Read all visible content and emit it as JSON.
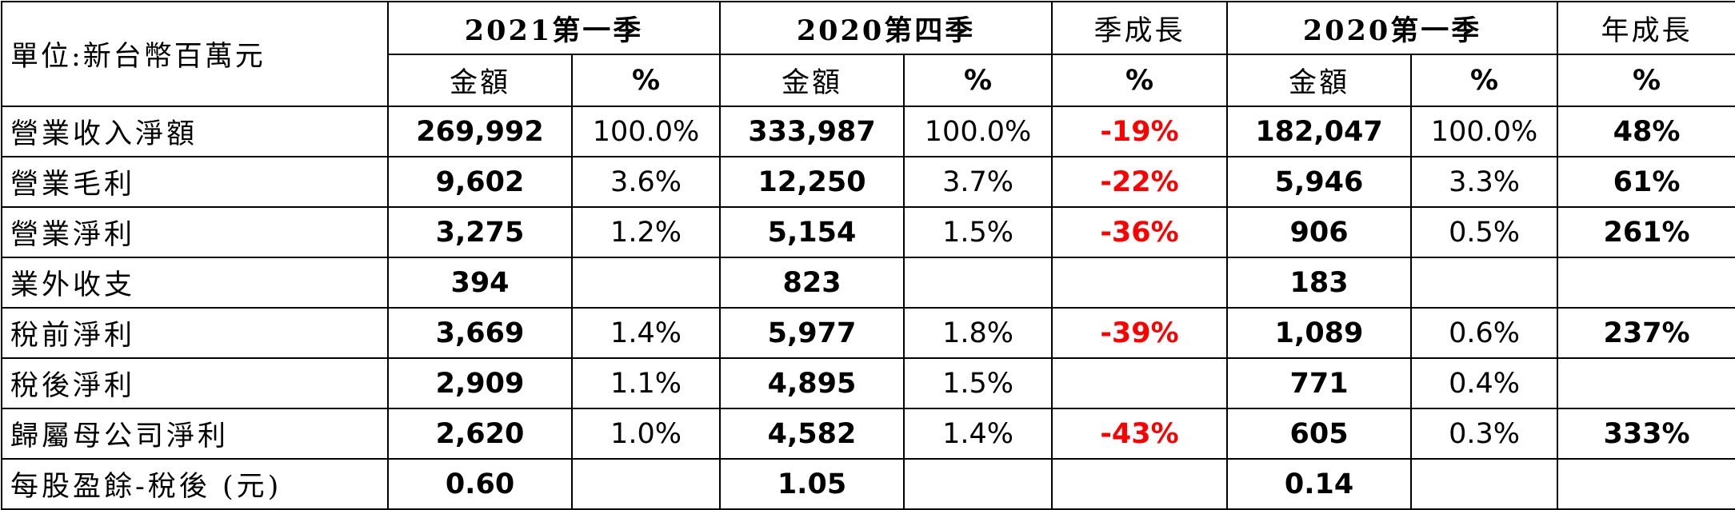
{
  "table": {
    "unit_label": "單位:新台幣百萬元",
    "period_headers": {
      "q1_2021": "2021第一季",
      "q4_2020": "2020第四季",
      "qoq": "季成長",
      "q1_2020": "2020第一季",
      "yoy": "年成長"
    },
    "sub_headers": {
      "amount": "金額",
      "percent": "%"
    },
    "rows": [
      {
        "label": "營業收入淨額",
        "q1_2021_amt": "269,992",
        "q1_2021_pct": "100.0%",
        "q4_2020_amt": "333,987",
        "q4_2020_pct": "100.0%",
        "qoq": "-19%",
        "q1_2020_amt": "182,047",
        "q1_2020_pct": "100.0%",
        "yoy": "48%"
      },
      {
        "label": "營業毛利",
        "q1_2021_amt": "9,602",
        "q1_2021_pct": "3.6%",
        "q4_2020_amt": "12,250",
        "q4_2020_pct": "3.7%",
        "qoq": "-22%",
        "q1_2020_amt": "5,946",
        "q1_2020_pct": "3.3%",
        "yoy": "61%"
      },
      {
        "label": "營業淨利",
        "q1_2021_amt": "3,275",
        "q1_2021_pct": "1.2%",
        "q4_2020_amt": "5,154",
        "q4_2020_pct": "1.5%",
        "qoq": "-36%",
        "q1_2020_amt": "906",
        "q1_2020_pct": "0.5%",
        "yoy": "261%"
      },
      {
        "label": "業外收支",
        "q1_2021_amt": "394",
        "q1_2021_pct": "",
        "q4_2020_amt": "823",
        "q4_2020_pct": "",
        "qoq": "",
        "q1_2020_amt": "183",
        "q1_2020_pct": "",
        "yoy": ""
      },
      {
        "label": "稅前淨利",
        "q1_2021_amt": "3,669",
        "q1_2021_pct": "1.4%",
        "q4_2020_amt": "5,977",
        "q4_2020_pct": "1.8%",
        "qoq": "-39%",
        "q1_2020_amt": "1,089",
        "q1_2020_pct": "0.6%",
        "yoy": "237%"
      },
      {
        "label": "稅後淨利",
        "q1_2021_amt": "2,909",
        "q1_2021_pct": "1.1%",
        "q4_2020_amt": "4,895",
        "q4_2020_pct": "1.5%",
        "qoq": "",
        "q1_2020_amt": "771",
        "q1_2020_pct": "0.4%",
        "yoy": ""
      },
      {
        "label": "歸屬母公司淨利",
        "q1_2021_amt": "2,620",
        "q1_2021_pct": "1.0%",
        "q4_2020_amt": "4,582",
        "q4_2020_pct": "1.4%",
        "qoq": "-43%",
        "q1_2020_amt": "605",
        "q1_2020_pct": "0.3%",
        "yoy": "333%"
      },
      {
        "label": "每股盈餘-稅後 (元)",
        "q1_2021_amt": "0.60",
        "q1_2021_pct": "",
        "q4_2020_amt": "1.05",
        "q4_2020_pct": "",
        "qoq": "",
        "q1_2020_amt": "0.14",
        "q1_2020_pct": "",
        "yoy": ""
      }
    ]
  },
  "colors": {
    "negative_growth": "#ff0000",
    "border": "#000000",
    "text": "#000000"
  }
}
